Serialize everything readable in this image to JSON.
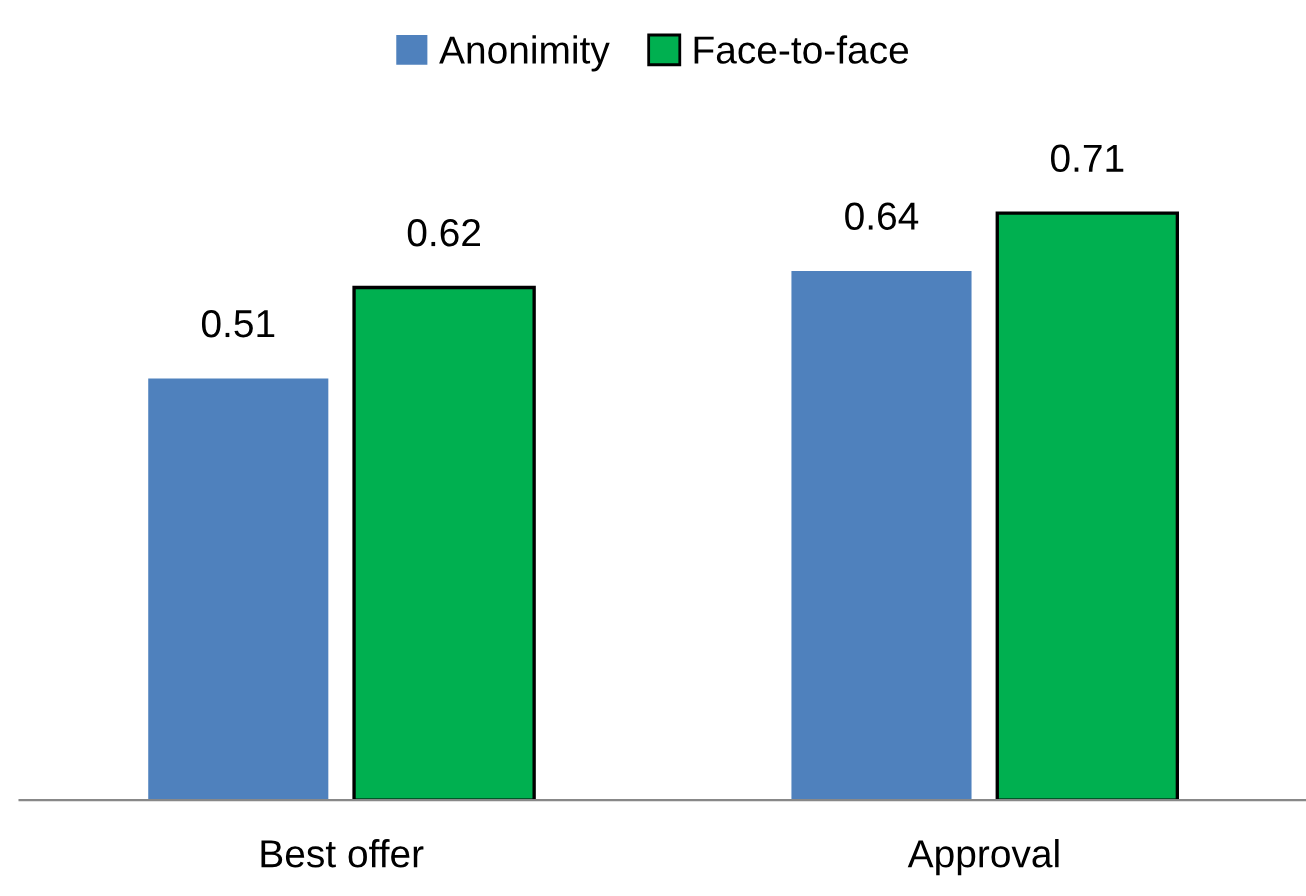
{
  "chart_data": {
    "type": "bar",
    "categories": [
      "Best offer",
      "Approval"
    ],
    "series": [
      {
        "name": "Anonimity",
        "color": "#4f81bd",
        "values": [
          0.51,
          0.64
        ]
      },
      {
        "name": "Face-to-face",
        "color": "#00b050",
        "values": [
          0.62,
          0.71
        ]
      }
    ],
    "data_labels": true,
    "legend": "top",
    "grid": false
  }
}
